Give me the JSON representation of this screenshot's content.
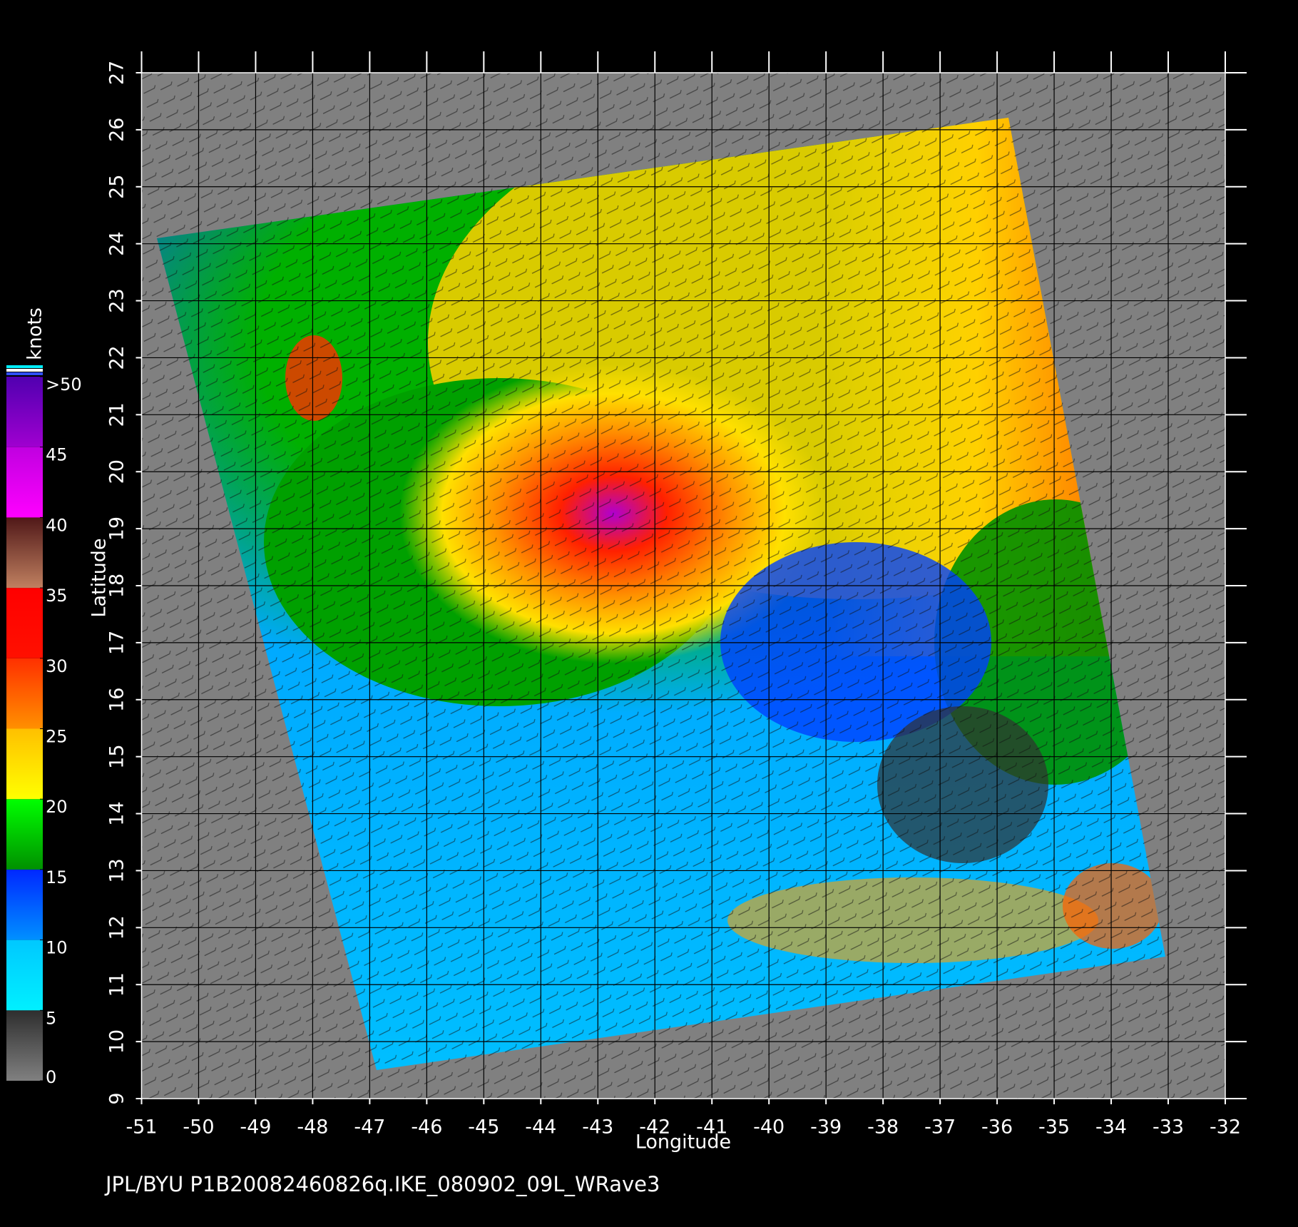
{
  "map": {
    "xlabel": "Longitude",
    "ylabel": "Latitude",
    "xlim": [
      -51,
      -32
    ],
    "ylim": [
      9,
      27
    ],
    "xticks": [
      -51,
      -50,
      -49,
      -48,
      -47,
      -46,
      -45,
      -44,
      -43,
      -42,
      -41,
      -40,
      -39,
      -38,
      -37,
      -36,
      -35,
      -34,
      -33,
      -32
    ],
    "yticks": [
      9,
      10,
      11,
      12,
      13,
      14,
      15,
      16,
      17,
      18,
      19,
      20,
      21,
      22,
      23,
      24,
      25,
      26,
      27
    ],
    "grid": true,
    "colorbar": {
      "title": "knots",
      "lim": [
        0,
        50
      ],
      "ticks": [
        0,
        5,
        10,
        15,
        20,
        25,
        30,
        35,
        40,
        45,
        {
          "value": 50,
          "label": ">50"
        }
      ],
      "colors": [
        [
          "#808080",
          "#2e2e2e"
        ],
        [
          "#00f0ff",
          "#00c8ff"
        ],
        [
          "#0090ff",
          "#0028ff"
        ],
        [
          "#009000",
          "#00ff00"
        ],
        [
          "#ffff00",
          "#ffc000"
        ],
        [
          "#ff9000",
          "#ff3000"
        ],
        [
          "#ff1000",
          "#ff0000"
        ],
        [
          "#c08060",
          "#501818"
        ],
        [
          "#ff00ff",
          "#c000e0"
        ],
        [
          "#a000d0",
          "#5000b0"
        ]
      ]
    },
    "footer": "JPL/BYU  P1B20082460826q.IKE_080902_09L_WRave3"
  }
}
